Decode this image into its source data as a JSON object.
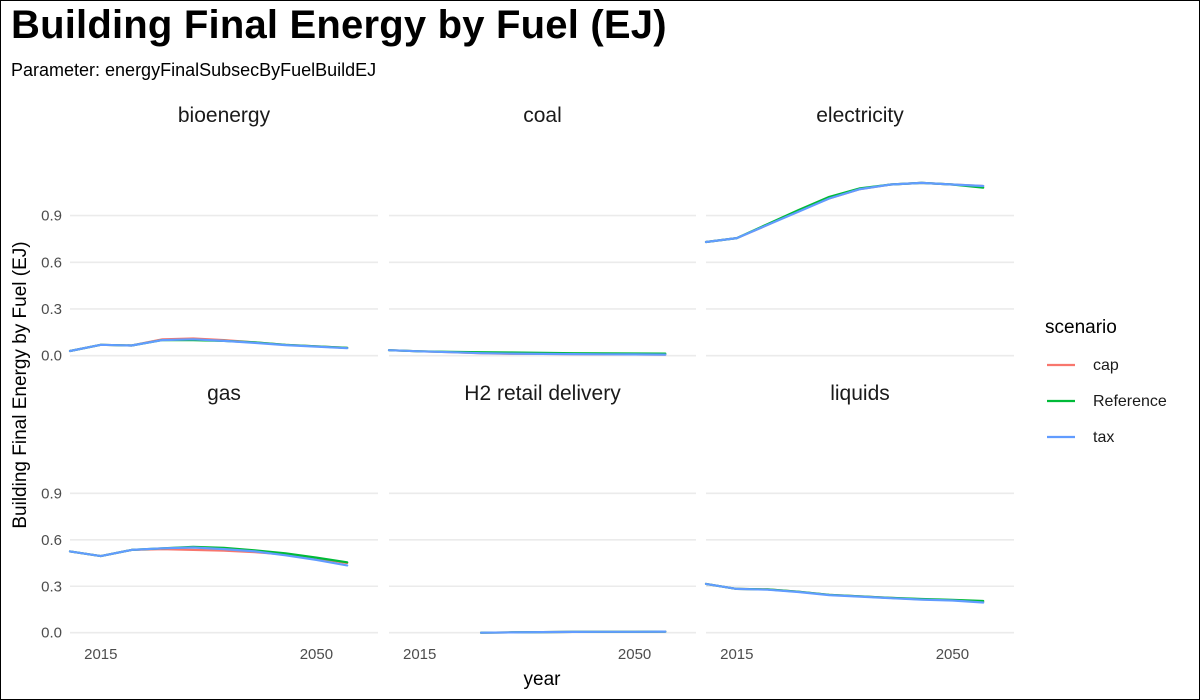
{
  "chart_data": {
    "type": "line",
    "title": "Building Final Energy by Fuel (EJ)",
    "subtitle": "Parameter: energyFinalSubsecByFuelBuildEJ",
    "xlabel": "year",
    "ylabel": "Building Final Energy by Fuel (EJ)",
    "xlim": [
      2010,
      2060
    ],
    "ylim": [
      -0.06,
      1.18
    ],
    "x_ticks": [
      2015,
      2050
    ],
    "y_ticks": [
      0.0,
      0.3,
      0.6,
      0.9
    ],
    "y_tick_labels": [
      "0.0",
      "0.3",
      "0.6",
      "0.9"
    ],
    "grid": true,
    "legend": {
      "title": "scenario",
      "placement": "right",
      "entries": [
        {
          "name": "cap",
          "color": "#F8766D"
        },
        {
          "name": "Reference",
          "color": "#00BA38"
        },
        {
          "name": "tax",
          "color": "#619CFF"
        }
      ]
    },
    "panels": [
      {
        "name": "bioenergy",
        "series": [
          {
            "name": "cap",
            "x": [
              2010,
              2015,
              2020,
              2025,
              2030,
              2035,
              2040,
              2045,
              2050,
              2055
            ],
            "y": [
              0.03,
              0.07,
              0.065,
              0.105,
              0.11,
              0.1,
              0.085,
              0.07,
              0.06,
              0.05
            ]
          },
          {
            "name": "Reference",
            "x": [
              2010,
              2015,
              2020,
              2025,
              2030,
              2035,
              2040,
              2045,
              2050,
              2055
            ],
            "y": [
              0.03,
              0.07,
              0.065,
              0.1,
              0.1,
              0.095,
              0.085,
              0.07,
              0.06,
              0.05
            ]
          },
          {
            "name": "tax",
            "x": [
              2010,
              2015,
              2020,
              2025,
              2030,
              2035,
              2040,
              2045,
              2050,
              2055
            ],
            "y": [
              0.03,
              0.07,
              0.065,
              0.1,
              0.105,
              0.095,
              0.082,
              0.068,
              0.058,
              0.048
            ]
          }
        ]
      },
      {
        "name": "coal",
        "series": [
          {
            "name": "cap",
            "x": [
              2010,
              2015,
              2020,
              2025,
              2030,
              2035,
              2040,
              2045,
              2050,
              2055
            ],
            "y": [
              0.035,
              0.028,
              0.022,
              0.015,
              0.012,
              0.011,
              0.01,
              0.009,
              0.008,
              0.007
            ]
          },
          {
            "name": "Reference",
            "x": [
              2010,
              2015,
              2020,
              2025,
              2030,
              2035,
              2040,
              2045,
              2050,
              2055
            ],
            "y": [
              0.035,
              0.028,
              0.025,
              0.022,
              0.02,
              0.018,
              0.016,
              0.015,
              0.014,
              0.013
            ]
          },
          {
            "name": "tax",
            "x": [
              2010,
              2015,
              2020,
              2025,
              2030,
              2035,
              2040,
              2045,
              2050,
              2055
            ],
            "y": [
              0.035,
              0.028,
              0.022,
              0.016,
              0.013,
              0.011,
              0.01,
              0.009,
              0.008,
              0.007
            ]
          }
        ]
      },
      {
        "name": "electricity",
        "series": [
          {
            "name": "cap",
            "x": [
              2010,
              2015,
              2020,
              2025,
              2030,
              2035,
              2040,
              2045,
              2050,
              2055
            ],
            "y": [
              0.73,
              0.755,
              0.84,
              0.93,
              1.01,
              1.07,
              1.1,
              1.11,
              1.1,
              1.09
            ]
          },
          {
            "name": "Reference",
            "x": [
              2010,
              2015,
              2020,
              2025,
              2030,
              2035,
              2040,
              2045,
              2050,
              2055
            ],
            "y": [
              0.73,
              0.755,
              0.845,
              0.935,
              1.02,
              1.075,
              1.1,
              1.11,
              1.1,
              1.08
            ]
          },
          {
            "name": "tax",
            "x": [
              2010,
              2015,
              2020,
              2025,
              2030,
              2035,
              2040,
              2045,
              2050,
              2055
            ],
            "y": [
              0.73,
              0.755,
              0.84,
              0.925,
              1.01,
              1.07,
              1.1,
              1.11,
              1.1,
              1.09
            ]
          }
        ]
      },
      {
        "name": "gas",
        "series": [
          {
            "name": "cap",
            "x": [
              2010,
              2015,
              2020,
              2025,
              2030,
              2035,
              2040,
              2045,
              2050,
              2055
            ],
            "y": [
              0.525,
              0.495,
              0.535,
              0.54,
              0.535,
              0.53,
              0.52,
              0.505,
              0.48,
              0.45
            ]
          },
          {
            "name": "Reference",
            "x": [
              2010,
              2015,
              2020,
              2025,
              2030,
              2035,
              2040,
              2045,
              2050,
              2055
            ],
            "y": [
              0.525,
              0.495,
              0.535,
              0.545,
              0.555,
              0.548,
              0.532,
              0.512,
              0.485,
              0.455
            ]
          },
          {
            "name": "tax",
            "x": [
              2010,
              2015,
              2020,
              2025,
              2030,
              2035,
              2040,
              2045,
              2050,
              2055
            ],
            "y": [
              0.525,
              0.495,
              0.535,
              0.545,
              0.55,
              0.54,
              0.525,
              0.5,
              0.47,
              0.435
            ]
          }
        ]
      },
      {
        "name": "H2 retail delivery",
        "series": [
          {
            "name": "cap",
            "x": [
              2025,
              2030,
              2035,
              2040,
              2045,
              2050,
              2055
            ],
            "y": [
              0.0,
              0.002,
              0.004,
              0.005,
              0.006,
              0.006,
              0.007
            ]
          },
          {
            "name": "Reference",
            "x": [
              2025,
              2030,
              2035,
              2040,
              2045,
              2050,
              2055
            ],
            "y": [
              0.0,
              0.002,
              0.004,
              0.005,
              0.006,
              0.006,
              0.007
            ]
          },
          {
            "name": "tax",
            "x": [
              2025,
              2030,
              2035,
              2040,
              2045,
              2050,
              2055
            ],
            "y": [
              0.0,
              0.002,
              0.004,
              0.005,
              0.006,
              0.006,
              0.007
            ]
          }
        ]
      },
      {
        "name": "liquids",
        "series": [
          {
            "name": "cap",
            "x": [
              2010,
              2015,
              2020,
              2025,
              2030,
              2035,
              2040,
              2045,
              2050,
              2055
            ],
            "y": [
              0.315,
              0.283,
              0.28,
              0.265,
              0.245,
              0.235,
              0.225,
              0.215,
              0.21,
              0.2
            ]
          },
          {
            "name": "Reference",
            "x": [
              2010,
              2015,
              2020,
              2025,
              2030,
              2035,
              2040,
              2045,
              2050,
              2055
            ],
            "y": [
              0.315,
              0.283,
              0.28,
              0.265,
              0.245,
              0.235,
              0.225,
              0.218,
              0.212,
              0.205
            ]
          },
          {
            "name": "tax",
            "x": [
              2010,
              2015,
              2020,
              2025,
              2030,
              2035,
              2040,
              2045,
              2050,
              2055
            ],
            "y": [
              0.315,
              0.283,
              0.278,
              0.263,
              0.243,
              0.233,
              0.223,
              0.214,
              0.208,
              0.195
            ]
          }
        ]
      }
    ]
  }
}
